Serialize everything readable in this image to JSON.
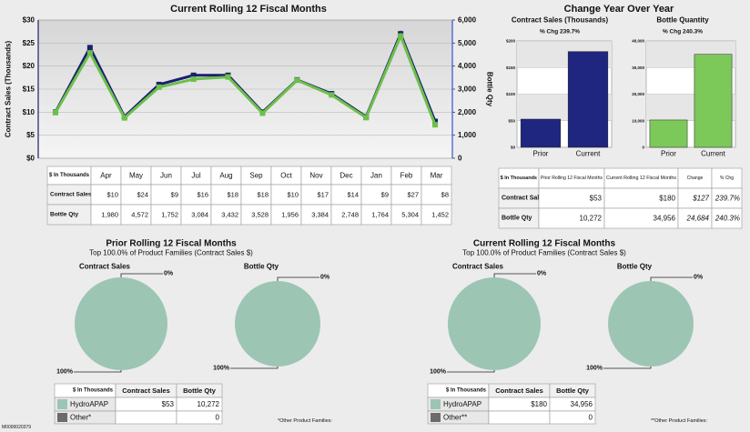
{
  "chart_data": [
    {
      "type": "line",
      "title": "Current Rolling 12 Fiscal Months",
      "ylabel": "Contract Sales (Thousands)",
      "y2label": "Bottle Qty",
      "categories": [
        "Apr",
        "May",
        "Jun",
        "Jul",
        "Aug",
        "Sep",
        "Oct",
        "Nov",
        "Dec",
        "Jan",
        "Feb",
        "Mar"
      ],
      "series": [
        {
          "name": "Contract Sales",
          "color": "#1c1f6e",
          "values": [
            10,
            24,
            9,
            16,
            18,
            18,
            10,
            17,
            14,
            9,
            27,
            8
          ],
          "value_labels": [
            "$10",
            "$24",
            "$9",
            "$16",
            "$18",
            "$18",
            "$10",
            "$17",
            "$14",
            "$9",
            "$27",
            "$8"
          ]
        },
        {
          "name": "Bottle Qty",
          "color": "#6cc04a",
          "axis": "y2",
          "values": [
            1980,
            4572,
            1752,
            3084,
            3432,
            3528,
            1956,
            3384,
            2748,
            1764,
            5304,
            1452
          ],
          "value_labels": [
            "1,980",
            "4,572",
            "1,752",
            "3,084",
            "3,432",
            "3,528",
            "1,956",
            "3,384",
            "2,748",
            "1,764",
            "5,304",
            "1,452"
          ]
        }
      ],
      "ylim": [
        0,
        30
      ],
      "yticks": [
        {
          "value": 0,
          "label": "$0"
        },
        {
          "value": 5,
          "label": "$5"
        },
        {
          "value": 10,
          "label": "$10"
        },
        {
          "value": 15,
          "label": "$15"
        },
        {
          "value": 20,
          "label": "$20"
        },
        {
          "value": 25,
          "label": "$25"
        },
        {
          "value": 30,
          "label": "$30"
        }
      ],
      "y2lim": [
        0,
        6000
      ],
      "y2ticks": [
        0,
        {
          "value": 1000,
          "label": "1,000"
        },
        {
          "value": 2000,
          "label": "2,000"
        },
        {
          "value": 3000,
          "label": "3,000"
        },
        {
          "value": 4000,
          "label": "4,000"
        },
        {
          "value": 5000,
          "label": "5,000"
        },
        {
          "value": 6000,
          "label": "6,000"
        }
      ],
      "grid": true
    },
    {
      "type": "bar",
      "title": "Contract Sales (Thousands)",
      "subtitle": "% Chg 239.7%",
      "categories": [
        "Prior",
        "Current"
      ],
      "values": [
        53,
        180
      ],
      "value_labels": [
        "$53",
        "$180"
      ],
      "color": "#1f2680",
      "ylim": [
        0,
        200
      ],
      "yticks": [
        {
          "value": 0,
          "label": "$0"
        },
        {
          "value": 50,
          "label": "$50"
        },
        {
          "value": 100,
          "label": "$100"
        },
        {
          "value": 150,
          "label": "$150"
        },
        {
          "value": 200,
          "label": "$200"
        }
      ],
      "grid": true
    },
    {
      "type": "bar",
      "title": "Bottle Quantity",
      "subtitle": "% Chg 240.3%",
      "categories": [
        "Prior",
        "Current"
      ],
      "values": [
        10272,
        34956
      ],
      "value_labels": [
        "10,272",
        "34,956"
      ],
      "color": "#7cc95a",
      "ylim": [
        0,
        40000
      ],
      "yticks": [
        0,
        {
          "value": 10000,
          "label": "10,000"
        },
        {
          "value": 20000,
          "label": "20,000"
        },
        {
          "value": 30000,
          "label": "30,000"
        },
        {
          "value": 40000,
          "label": "40,000"
        }
      ],
      "grid": true
    },
    {
      "type": "pie",
      "title": "Contract Sales",
      "categories": [
        "HydroAPAP",
        "Other*"
      ],
      "values": [
        100,
        0
      ],
      "value_labels": [
        "100%",
        "0%"
      ],
      "colors": [
        "#9cc5b4",
        "#6b6b6b"
      ]
    },
    {
      "type": "pie",
      "title": "Bottle Qty",
      "categories": [
        "HydroAPAP",
        "Other*"
      ],
      "values": [
        100,
        0
      ],
      "value_labels": [
        "100%",
        "0%"
      ],
      "colors": [
        "#9cc5b4",
        "#6b6b6b"
      ]
    },
    {
      "type": "pie",
      "title": "Contract Sales",
      "categories": [
        "HydroAPAP",
        "Other**"
      ],
      "values": [
        100,
        0
      ],
      "value_labels": [
        "100%",
        "0%"
      ],
      "colors": [
        "#9cc5b4",
        "#6b6b6b"
      ]
    },
    {
      "type": "pie",
      "title": "Bottle Qty",
      "categories": [
        "HydroAPAP",
        "Other**"
      ],
      "values": [
        100,
        0
      ],
      "value_labels": [
        "100%",
        "0%"
      ],
      "colors": [
        "#9cc5b4",
        "#6b6b6b"
      ]
    }
  ],
  "line_table": {
    "corner": "$ In Thousands"
  },
  "yoy": {
    "title": "Change Year Over Year",
    "table": {
      "corner": "$ In Thousands",
      "headers": [
        "Prior Rolling 12 Fiscal Months",
        "Current Rolling 12 Fiscal Months",
        "Change",
        "% Chg"
      ],
      "rows": [
        {
          "change": "$127",
          "pct_chg": "239.7%"
        },
        {
          "change": "24,684",
          "pct_chg": "240.3%"
        }
      ]
    }
  },
  "panels": [
    {
      "title": "Prior Rolling 12 Fiscal Months",
      "subtitle": "Top 100.0% of Product Families (Contract Sales $)",
      "table": {
        "corner": "$ In Thousands",
        "rows": [
          {
            "contract_sales": "$53",
            "bottle_qty": "10,272"
          },
          {
            "bottle_qty": "0"
          }
        ]
      },
      "footnote": "*Other Product Families:"
    },
    {
      "title": "Current Rolling 12 Fiscal Months",
      "subtitle": "Top 100.0% of Product Families (Contract Sales $)",
      "table": {
        "corner": "$ In Thousands",
        "rows": [
          {
            "contract_sales": "$180",
            "bottle_qty": "34,956"
          },
          {
            "bottle_qty": "0"
          }
        ]
      },
      "footnote": "**Other Product Families:"
    }
  ],
  "page_id": "M0000020379"
}
